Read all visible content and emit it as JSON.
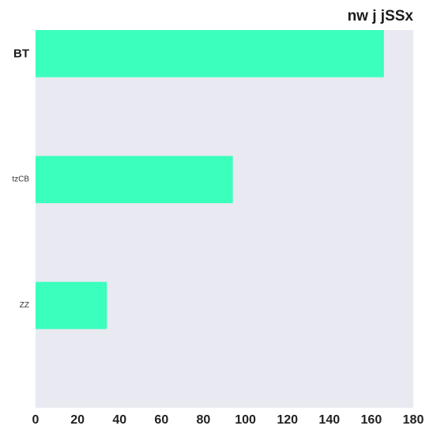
{
  "chart_data": {
    "type": "bar",
    "orientation": "horizontal",
    "title": "nw j jSSx",
    "xlabel": "",
    "ylabel": "",
    "categories": [
      "BT",
      "tzCB",
      "ZZ"
    ],
    "values": [
      166,
      94,
      34
    ],
    "xlim": [
      0,
      180
    ],
    "xticks": [
      0,
      20,
      40,
      60,
      80,
      100,
      120,
      140,
      160,
      180
    ],
    "grid": false,
    "legend": "none",
    "colors": {
      "bar": "#3bffbd",
      "plot_background": "#e9e9f1"
    }
  }
}
